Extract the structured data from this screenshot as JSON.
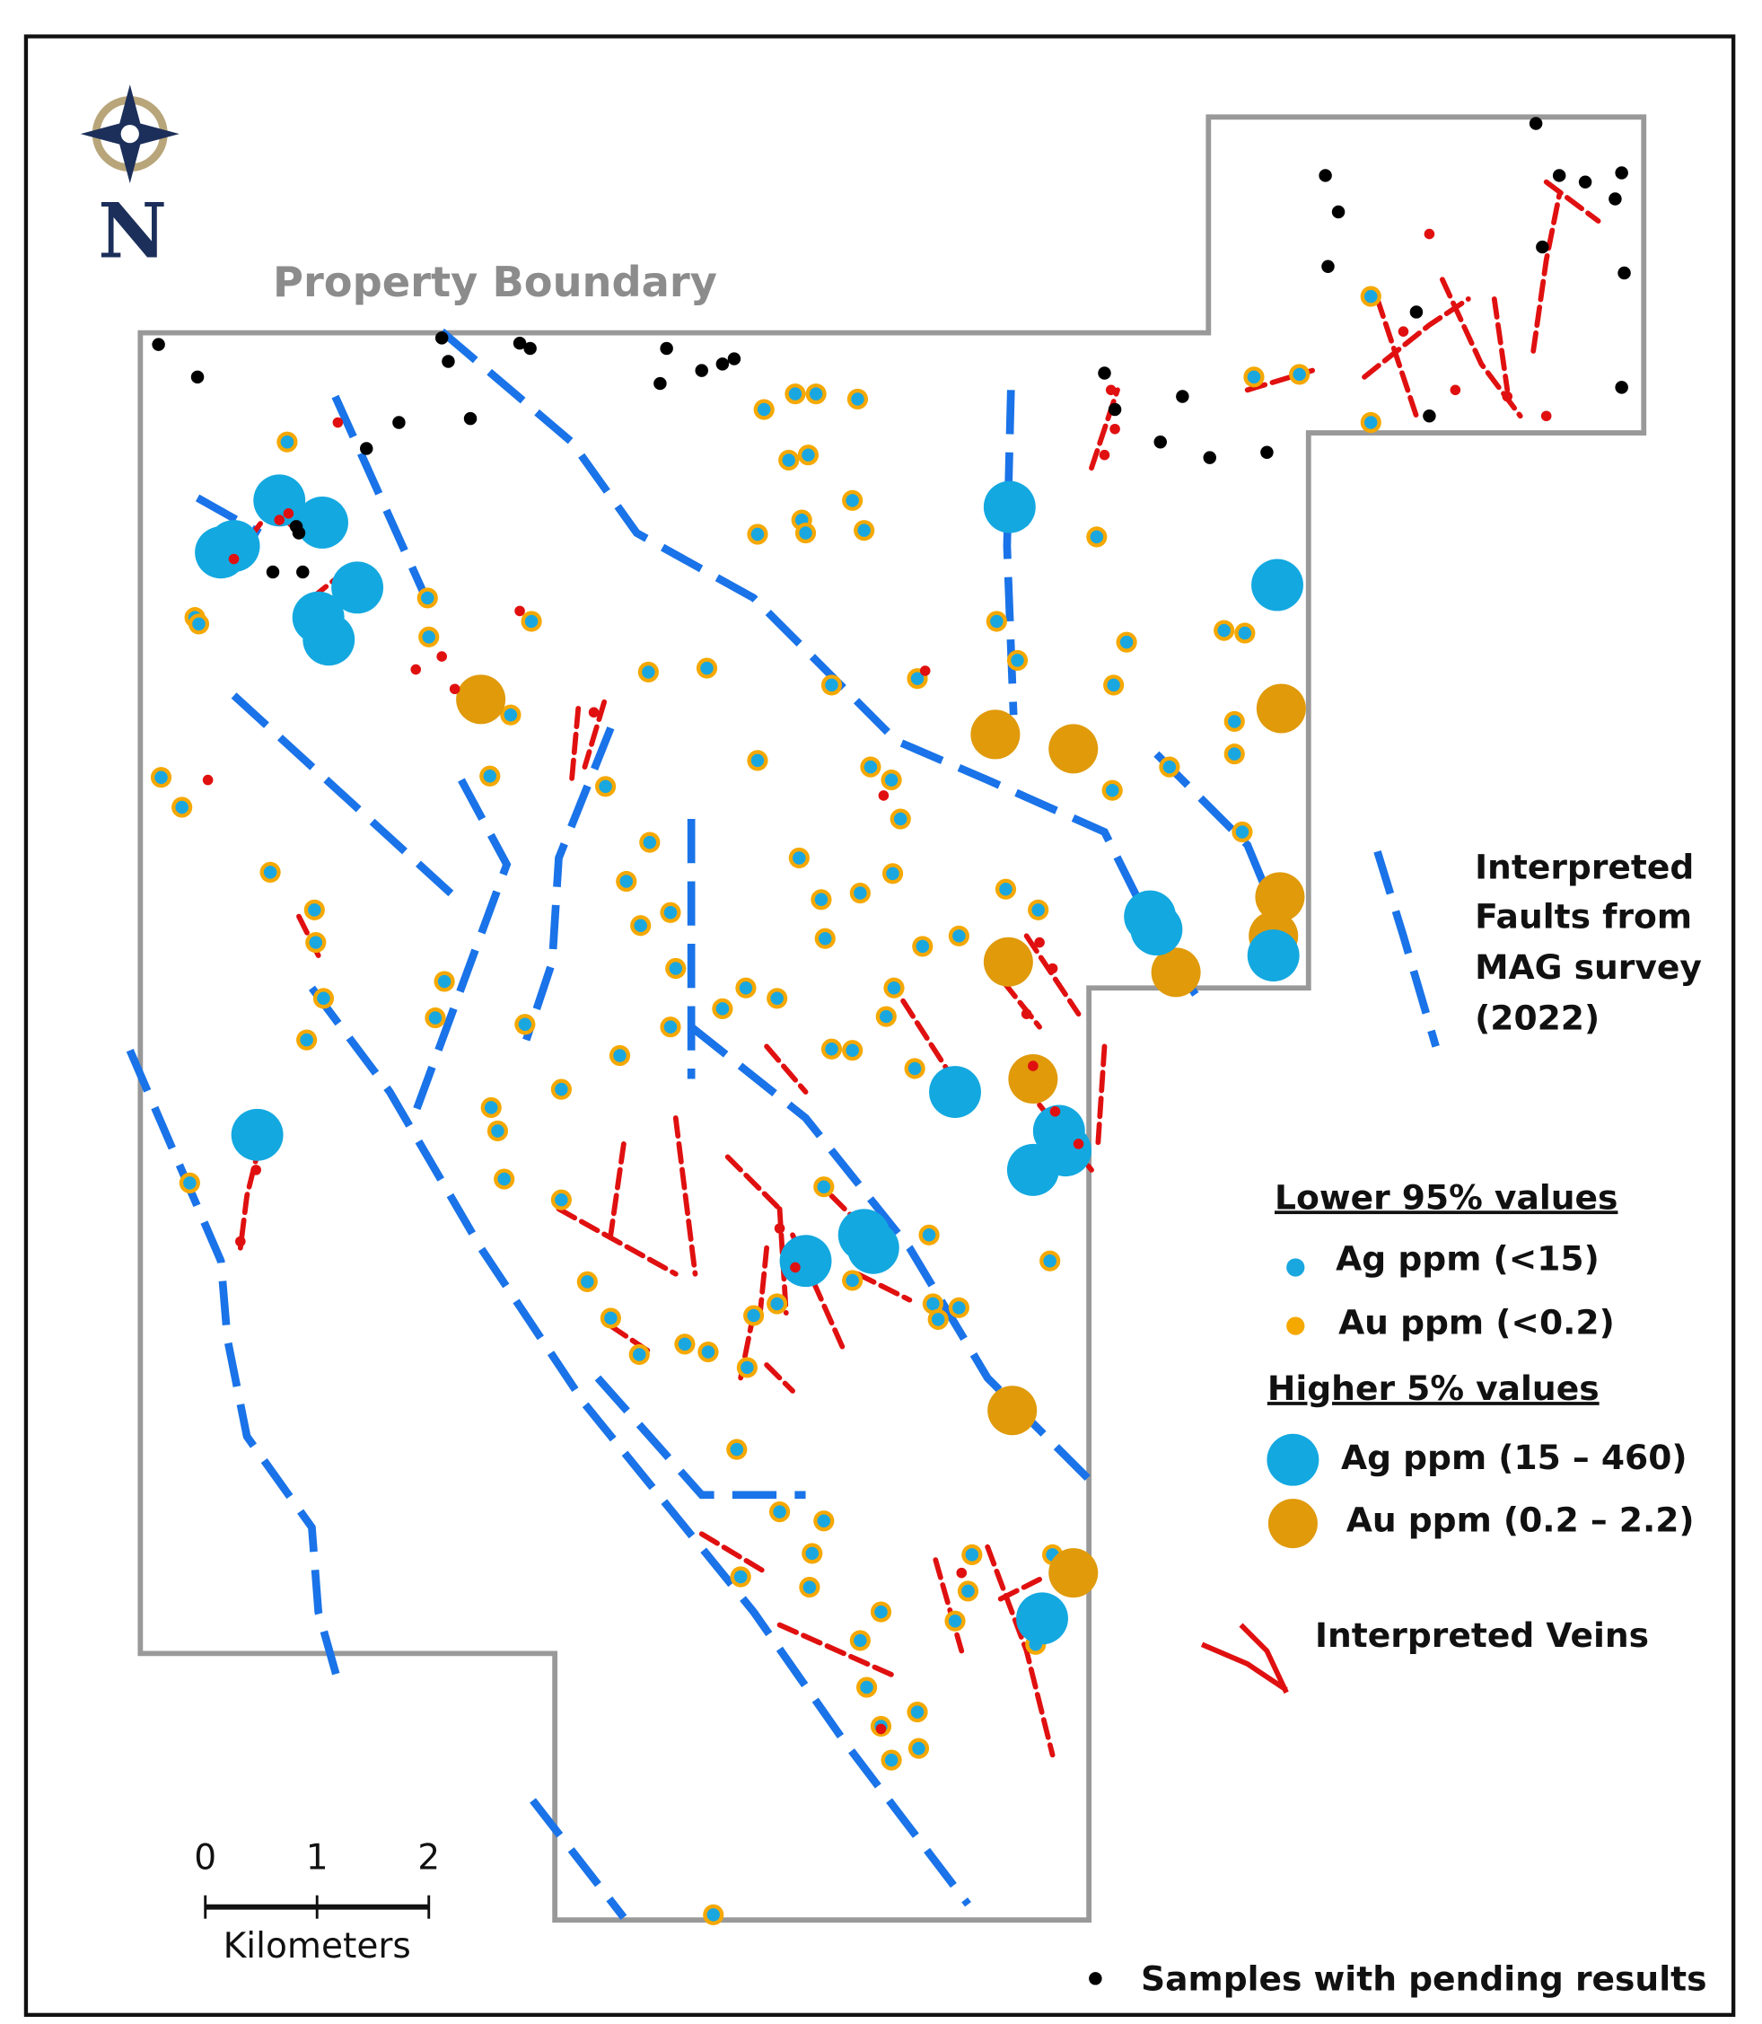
{
  "map": {
    "boundary_label": "Property Boundary",
    "north_label": "N"
  },
  "legend": {
    "faults": [
      "Interpreted",
      "Faults from",
      "MAG survey",
      "(2022)"
    ],
    "lower_heading": "Lower 95% values",
    "lower_ag": "Ag ppm (<15)",
    "lower_au": "Au ppm (<0.2)",
    "higher_heading": "Higher 5% values",
    "higher_ag": "Ag ppm (15 – 460)",
    "higher_au": "Au ppm (0.2 – 2.2)",
    "veins": "Interpreted Veins",
    "pending": "Samples with pending results"
  },
  "scale_bar": {
    "labels": [
      "0",
      "1",
      "2"
    ],
    "unit": "Kilometers"
  }
}
